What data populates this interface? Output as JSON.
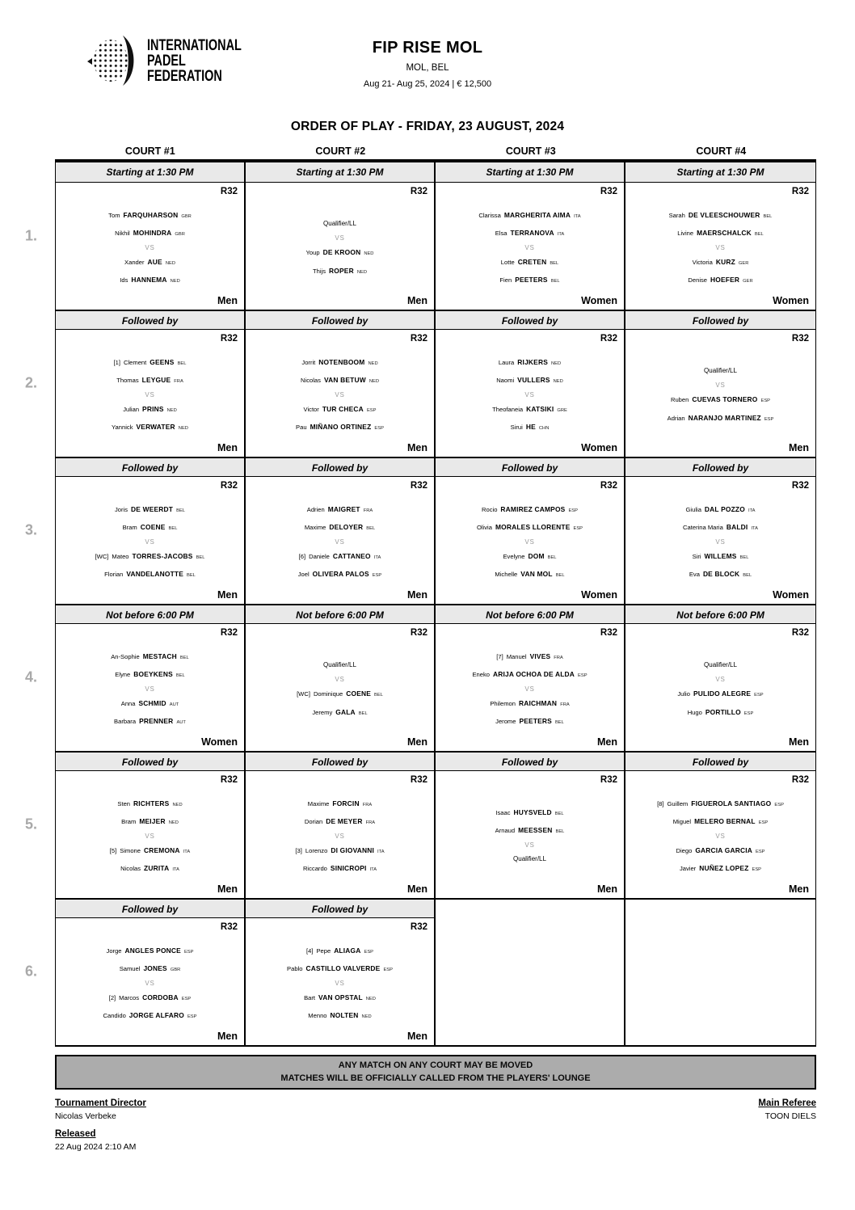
{
  "logo": {
    "line1": "INTERNATIONAL",
    "line2": "PADEL",
    "line3": "FEDERATION"
  },
  "header": {
    "title": "FIP RISE MOL",
    "location": "MOL, BEL",
    "dates_prize": "Aug 21- Aug 25, 2024  |  € 12,500"
  },
  "order_title": "ORDER OF PLAY - FRIDAY, 23 AUGUST, 2024",
  "courts": [
    "COURT #1",
    "COURT #2",
    "COURT #3",
    "COURT #4"
  ],
  "vs_label": "VS",
  "rows": [
    {
      "number": "1.",
      "cells": [
        {
          "time": "Starting at 1:30 PM",
          "round": "R32",
          "category": "Men",
          "team1": [
            {
              "first": "Tom",
              "last": "FARQUHARSON",
              "nat": "GBR"
            },
            {
              "first": "Nikhil",
              "last": "MOHINDRA",
              "nat": "GBR"
            }
          ],
          "team2": [
            {
              "first": "Xander",
              "last": "AUE",
              "nat": "NED"
            },
            {
              "first": "Ids",
              "last": "HANNEMA",
              "nat": "NED"
            }
          ]
        },
        {
          "time": "Starting at 1:30 PM",
          "round": "R32",
          "category": "Men",
          "team1": [
            {
              "special": "Qualifier/LL"
            }
          ],
          "team2": [
            {
              "first": "Youp",
              "last": "DE KROON",
              "nat": "NED"
            },
            {
              "first": "Thijs",
              "last": "ROPER",
              "nat": "NED"
            }
          ]
        },
        {
          "time": "Starting at 1:30 PM",
          "round": "R32",
          "category": "Women",
          "team1": [
            {
              "first": "Clarissa",
              "last": "MARGHERITA AIMA",
              "nat": "ITA"
            },
            {
              "first": "Elsa",
              "last": "TERRANOVA",
              "nat": "ITA"
            }
          ],
          "team2": [
            {
              "first": "Lotte",
              "last": "CRETEN",
              "nat": "BEL"
            },
            {
              "first": "Fien",
              "last": "PEETERS",
              "nat": "BEL"
            }
          ]
        },
        {
          "time": "Starting at 1:30 PM",
          "round": "R32",
          "category": "Women",
          "team1": [
            {
              "first": "Sarah",
              "last": "DE VLEESCHOUWER",
              "nat": "BEL"
            },
            {
              "first": "Livine",
              "last": "MAERSCHALCK",
              "nat": "BEL"
            }
          ],
          "team2": [
            {
              "first": "Victoria",
              "last": "KURZ",
              "nat": "GER"
            },
            {
              "first": "Denise",
              "last": "HOEFER",
              "nat": "GER"
            }
          ]
        }
      ]
    },
    {
      "number": "2.",
      "cells": [
        {
          "time": "Followed by",
          "round": "R32",
          "category": "Men",
          "team1": [
            {
              "seed": "[1]",
              "first": "Clement",
              "last": "GEENS",
              "nat": "BEL"
            },
            {
              "first": "Thomas",
              "last": "LEYGUE",
              "nat": "FRA"
            }
          ],
          "team2": [
            {
              "first": "Julian",
              "last": "PRINS",
              "nat": "NED"
            },
            {
              "first": "Yannick",
              "last": "VERWATER",
              "nat": "NED"
            }
          ]
        },
        {
          "time": "Followed by",
          "round": "R32",
          "category": "Men",
          "team1": [
            {
              "first": "Jorrit",
              "last": "NOTENBOOM",
              "nat": "NED"
            },
            {
              "first": "Nicolas",
              "last": "VAN BETUW",
              "nat": "NED"
            }
          ],
          "team2": [
            {
              "first": "Victor",
              "last": "TUR CHECA",
              "nat": "ESP"
            },
            {
              "first": "Pau",
              "last": "MIÑANO ORTINEZ",
              "nat": "ESP"
            }
          ]
        },
        {
          "time": "Followed by",
          "round": "R32",
          "category": "Women",
          "team1": [
            {
              "first": "Laura",
              "last": "RIJKERS",
              "nat": "NED"
            },
            {
              "first": "Naomi",
              "last": "VULLERS",
              "nat": "NED"
            }
          ],
          "team2": [
            {
              "first": "Theofaneia",
              "last": "KATSIKI",
              "nat": "GRE"
            },
            {
              "first": "Sirui",
              "last": "HE",
              "nat": "CHN"
            }
          ]
        },
        {
          "time": "Followed by",
          "round": "R32",
          "category": "Men",
          "team1": [
            {
              "special": "Qualifier/LL"
            }
          ],
          "team2": [
            {
              "first": "Ruben",
              "last": "CUEVAS TORNERO",
              "nat": "ESP"
            },
            {
              "first": "Adrian",
              "last": "NARANJO MARTINEZ",
              "nat": "ESP"
            }
          ]
        }
      ]
    },
    {
      "number": "3.",
      "cells": [
        {
          "time": "Followed by",
          "round": "R32",
          "category": "Men",
          "team1": [
            {
              "first": "Joris",
              "last": "DE WEERDT",
              "nat": "BEL"
            },
            {
              "first": "Bram",
              "last": "COENE",
              "nat": "BEL"
            }
          ],
          "team2": [
            {
              "seed": "[WC]",
              "first": "Mateo",
              "last": "TORRES-JACOBS",
              "nat": "BEL"
            },
            {
              "first": "Florian",
              "last": "VANDELANOTTE",
              "nat": "BEL"
            }
          ]
        },
        {
          "time": "Followed by",
          "round": "R32",
          "category": "Men",
          "team1": [
            {
              "first": "Adrien",
              "last": "MAIGRET",
              "nat": "FRA"
            },
            {
              "first": "Maxime",
              "last": "DELOYER",
              "nat": "BEL"
            }
          ],
          "team2": [
            {
              "seed": "[6]",
              "first": "Daniele",
              "last": "CATTANEO",
              "nat": "ITA"
            },
            {
              "first": "Joel",
              "last": "OLIVERA PALOS",
              "nat": "ESP"
            }
          ]
        },
        {
          "time": "Followed by",
          "round": "R32",
          "category": "Women",
          "team1": [
            {
              "first": "Rocio",
              "last": "RAMIREZ CAMPOS",
              "nat": "ESP"
            },
            {
              "first": "Olivia",
              "last": "MORALES LLORENTE",
              "nat": "ESP"
            }
          ],
          "team2": [
            {
              "first": "Evelyne",
              "last": "DOM",
              "nat": "BEL"
            },
            {
              "first": "Michelle",
              "last": "VAN MOL",
              "nat": "BEL"
            }
          ]
        },
        {
          "time": "Followed by",
          "round": "R32",
          "category": "Women",
          "team1": [
            {
              "first": "Giulia",
              "last": "DAL POZZO",
              "nat": "ITA"
            },
            {
              "first": "Caterina Maria",
              "last": "BALDI",
              "nat": "ITA"
            }
          ],
          "team2": [
            {
              "first": "Siri",
              "last": "WILLEMS",
              "nat": "BEL"
            },
            {
              "first": "Eva",
              "last": "DE BLOCK",
              "nat": "BEL"
            }
          ]
        }
      ]
    },
    {
      "number": "4.",
      "cells": [
        {
          "time": "Not before 6:00 PM",
          "round": "R32",
          "category": "Women",
          "team1": [
            {
              "first": "An-Sophie",
              "last": "MESTACH",
              "nat": "BEL"
            },
            {
              "first": "Elyne",
              "last": "BOEYKENS",
              "nat": "BEL"
            }
          ],
          "team2": [
            {
              "first": "Anna",
              "last": "SCHMID",
              "nat": "AUT"
            },
            {
              "first": "Barbara",
              "last": "PRENNER",
              "nat": "AUT"
            }
          ]
        },
        {
          "time": "Not before 6:00 PM",
          "round": "R32",
          "category": "Men",
          "team1": [
            {
              "special": "Qualifier/LL"
            }
          ],
          "team2": [
            {
              "seed": "[WC]",
              "first": "Dominique",
              "last": "COENE",
              "nat": "BEL"
            },
            {
              "first": "Jeremy",
              "last": "GALA",
              "nat": "BEL"
            }
          ]
        },
        {
          "time": "Not before 6:00 PM",
          "round": "R32",
          "category": "Men",
          "team1": [
            {
              "seed": "[7]",
              "first": "Manuel",
              "last": "VIVES",
              "nat": "FRA"
            },
            {
              "first": "Eneko",
              "last": "ARIJA OCHOA DE ALDA",
              "nat": "ESP"
            }
          ],
          "team2": [
            {
              "first": "Philemon",
              "last": "RAICHMAN",
              "nat": "FRA"
            },
            {
              "first": "Jerome",
              "last": "PEETERS",
              "nat": "BEL"
            }
          ]
        },
        {
          "time": "Not before 6:00 PM",
          "round": "R32",
          "category": "Men",
          "team1": [
            {
              "special": "Qualifier/LL"
            }
          ],
          "team2": [
            {
              "first": "Julio",
              "last": "PULIDO ALEGRE",
              "nat": "ESP"
            },
            {
              "first": "Hugo",
              "last": "PORTILLO",
              "nat": "ESP"
            }
          ]
        }
      ]
    },
    {
      "number": "5.",
      "cells": [
        {
          "time": "Followed by",
          "round": "R32",
          "category": "Men",
          "team1": [
            {
              "first": "Sten",
              "last": "RICHTERS",
              "nat": "NED"
            },
            {
              "first": "Bram",
              "last": "MEIJER",
              "nat": "NED"
            }
          ],
          "team2": [
            {
              "seed": "[5]",
              "first": "Simone",
              "last": "CREMONA",
              "nat": "ITA"
            },
            {
              "first": "Nicolas",
              "last": "ZURITA",
              "nat": "ITA"
            }
          ]
        },
        {
          "time": "Followed by",
          "round": "R32",
          "category": "Men",
          "team1": [
            {
              "first": "Maxime",
              "last": "FORCIN",
              "nat": "FRA"
            },
            {
              "first": "Dorian",
              "last": "DE MEYER",
              "nat": "FRA"
            }
          ],
          "team2": [
            {
              "seed": "[3]",
              "first": "Lorenzo",
              "last": "DI GIOVANNI",
              "nat": "ITA"
            },
            {
              "first": "Riccardo",
              "last": "SINICROPI",
              "nat": "ITA"
            }
          ]
        },
        {
          "time": "Followed by",
          "round": "R32",
          "category": "Men",
          "team1": [
            {
              "first": "Isaac",
              "last": "HUYSVELD",
              "nat": "BEL"
            },
            {
              "first": "Arnaud",
              "last": "MEESSEN",
              "nat": "BEL"
            }
          ],
          "team2": [
            {
              "special": "Qualifier/LL"
            }
          ]
        },
        {
          "time": "Followed by",
          "round": "R32",
          "category": "Men",
          "team1": [
            {
              "seed": "[8]",
              "first": "Guillem",
              "last": "FIGUEROLA SANTIAGO",
              "nat": "ESP"
            },
            {
              "first": "Miguel",
              "last": "MELERO BERNAL",
              "nat": "ESP"
            }
          ],
          "team2": [
            {
              "first": "Diego",
              "last": "GARCIA GARCIA",
              "nat": "ESP"
            },
            {
              "first": "Javier",
              "last": "NUÑEZ LOPEZ",
              "nat": "ESP"
            }
          ]
        }
      ]
    },
    {
      "number": "6.",
      "cells": [
        {
          "time": "Followed by",
          "round": "R32",
          "category": "Men",
          "team1": [
            {
              "first": "Jorge",
              "last": "ANGLES PONCE",
              "nat": "ESP"
            },
            {
              "first": "Samuel",
              "last": "JONES",
              "nat": "GBR"
            }
          ],
          "team2": [
            {
              "seed": "[2]",
              "first": "Marcos",
              "last": "CORDOBA",
              "nat": "ESP"
            },
            {
              "first": "Candido",
              "last": "JORGE ALFARO",
              "nat": "ESP"
            }
          ]
        },
        {
          "time": "Followed by",
          "round": "R32",
          "category": "Men",
          "team1": [
            {
              "seed": "[4]",
              "first": "Pepe",
              "last": "ALIAGA",
              "nat": "ESP"
            },
            {
              "first": "Pablo",
              "last": "CASTILLO VALVERDE",
              "nat": "ESP"
            }
          ],
          "team2": [
            {
              "first": "Bart",
              "last": "VAN OPSTAL",
              "nat": "NED"
            },
            {
              "first": "Menno",
              "last": "NOLTEN",
              "nat": "NED"
            }
          ]
        },
        null,
        null
      ]
    }
  ],
  "notice": {
    "line1": "ANY MATCH ON ANY COURT MAY BE MOVED",
    "line2": "MATCHES WILL BE OFFICIALLY CALLED FROM THE PLAYERS' LOUNGE"
  },
  "footer": {
    "tournament_director_label": "Tournament Director",
    "tournament_director": "Nicolas Verbeke",
    "released_label": "Released",
    "released": "22 Aug 2024  2:10 AM",
    "main_referee_label": "Main Referee",
    "main_referee": "TOON DIELS"
  }
}
